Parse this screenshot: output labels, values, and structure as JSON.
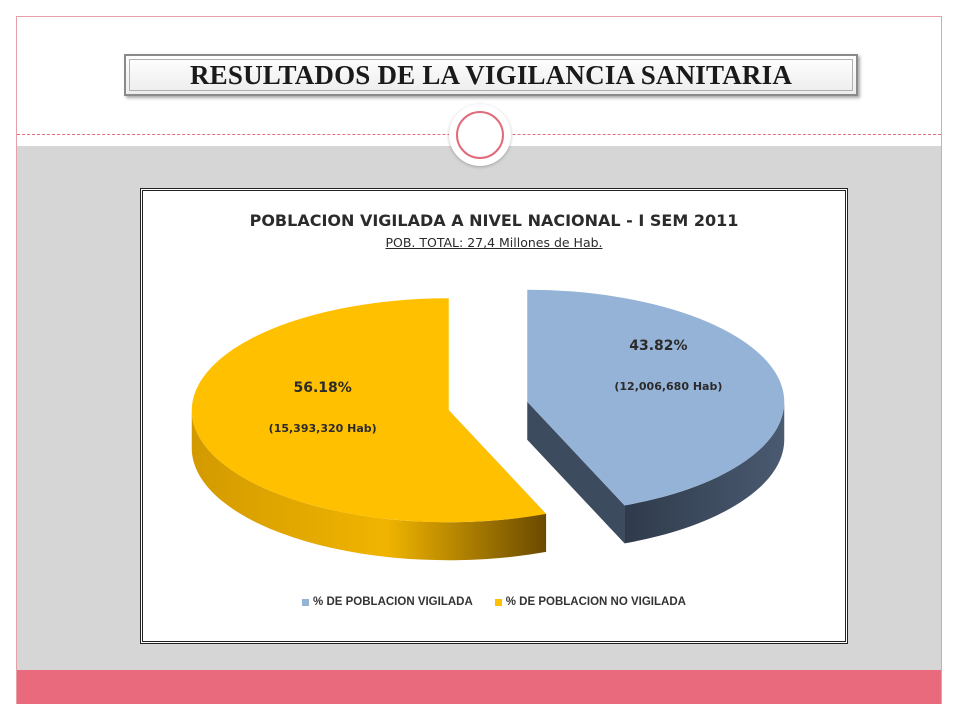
{
  "slide": {
    "title": "RESULTADOS DE LA VIGILANCIA SANITARIA",
    "colors": {
      "accent": "#e96a7c",
      "band": "#d6d6d6"
    }
  },
  "chart_data": {
    "type": "pie",
    "title": "POBLACION VIGILADA A NIVEL NACIONAL -  I SEM 2011",
    "subtitle": "POB. TOTAL:  27,4 Millones de Hab.",
    "slices": [
      {
        "name": "% DE POBLACION VIGILADA",
        "value": 43.82,
        "label": "43.82%",
        "sublabel": "(12,006,680 Hab)",
        "color": "#95b3d7",
        "side_color": "#3d4b5e"
      },
      {
        "name": "% DE POBLACION NO VIGILADA",
        "value": 56.18,
        "label": "56.18%",
        "sublabel": "(15,393,320 Hab)",
        "color": "#ffc000",
        "side_color": "#b08000"
      }
    ],
    "legend_position": "bottom",
    "style": "3d-exploded"
  }
}
